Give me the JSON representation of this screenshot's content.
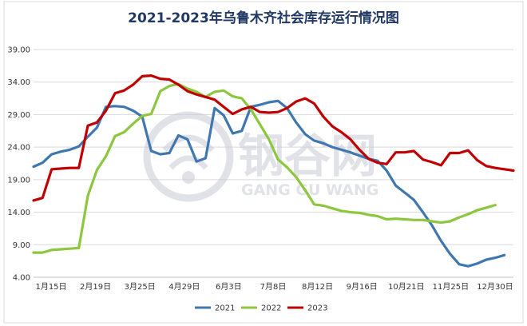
{
  "chart_data": {
    "type": "line",
    "title": "2021-2023年乌鲁木齐社会库存运行情况图",
    "xlabel": "",
    "ylabel": "",
    "x_ticks": [
      "1月15日",
      "2月19日",
      "3月25日",
      "4月29日",
      "6月3日",
      "7月8日",
      "8月12日",
      "9月16日",
      "10月21日",
      "11月25日",
      "12月30日"
    ],
    "y_ticks": [
      "4.00",
      "9.00",
      "14.00",
      "19.00",
      "24.00",
      "29.00",
      "34.00",
      "39.00"
    ],
    "ylim": [
      4,
      39
    ],
    "grid": "horizontal",
    "legend_position": "bottom",
    "watermark": {
      "cn": "钢谷网",
      "en": "GANG GU WANG"
    },
    "series": [
      {
        "name": "2021",
        "color": "#3f77b0",
        "values": [
          21.0,
          21.6,
          22.9,
          23.3,
          23.6,
          24.1,
          25.6,
          27.0,
          30.2,
          30.3,
          30.2,
          29.6,
          28.7,
          23.4,
          22.9,
          23.1,
          25.8,
          25.2,
          21.8,
          22.3,
          30.0,
          28.9,
          26.1,
          26.5,
          30.2,
          30.5,
          30.9,
          31.1,
          30.0,
          27.8,
          26.0,
          25.0,
          24.6,
          24.0,
          23.6,
          23.2,
          22.7,
          22.2,
          21.9,
          20.4,
          18.1,
          17.0,
          15.9,
          14.0,
          12.0,
          9.6,
          7.6,
          6.0,
          5.7,
          6.1,
          6.7,
          7.0,
          7.4
        ]
      },
      {
        "name": "2022",
        "color": "#8dc63f",
        "values": [
          7.8,
          7.8,
          8.2,
          8.3,
          8.4,
          8.5,
          16.5,
          20.5,
          22.6,
          25.7,
          26.3,
          27.6,
          28.8,
          29.1,
          32.6,
          33.4,
          33.7,
          33.0,
          32.5,
          31.7,
          32.5,
          32.7,
          31.8,
          31.5,
          29.8,
          27.5,
          25.2,
          22.1,
          20.9,
          19.4,
          17.4,
          15.2,
          15.0,
          14.6,
          14.2,
          14.0,
          13.9,
          13.6,
          13.4,
          12.9,
          13.0,
          12.9,
          12.8,
          12.8,
          12.6,
          12.4,
          12.6,
          13.2,
          13.7,
          14.3,
          14.7,
          15.1
        ]
      },
      {
        "name": "2023",
        "color": "#c00000",
        "values": [
          15.8,
          16.2,
          20.6,
          20.7,
          20.8,
          20.8,
          27.3,
          27.8,
          29.6,
          32.3,
          32.7,
          33.6,
          34.9,
          35.0,
          34.5,
          34.4,
          33.6,
          32.6,
          32.1,
          31.7,
          31.3,
          30.2,
          29.1,
          29.8,
          30.2,
          29.4,
          29.3,
          29.4,
          30.0,
          31.0,
          31.5,
          30.7,
          28.7,
          27.2,
          26.3,
          25.2,
          23.6,
          22.2,
          21.6,
          21.4,
          23.2,
          23.2,
          23.4,
          22.1,
          21.7,
          21.2,
          23.1,
          23.1,
          23.5,
          22.0,
          21.1,
          20.8,
          20.6,
          20.4
        ]
      }
    ]
  }
}
